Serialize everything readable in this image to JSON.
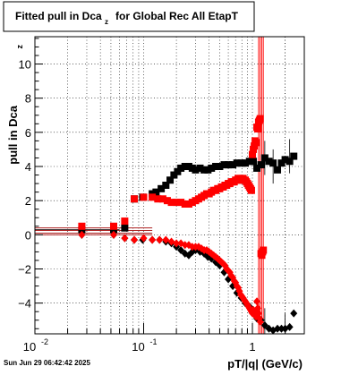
{
  "chart_data": {
    "type": "scatter",
    "title": "Fitted pull in Dca",
    "title_subscript": "z",
    "title_suffix": "for Global Rec All EtapT",
    "xlabel": "pT/|q| (GeV/c)",
    "ylabel": "pull in Dca",
    "ylabel_subscript": "z",
    "xscale": "log",
    "xlim": [
      0.01,
      3.0
    ],
    "ylim": [
      -5.8,
      11.6
    ],
    "grid": true,
    "x_tick_labels": [
      {
        "value": 0.01,
        "base": "10",
        "exp": "-2"
      },
      {
        "value": 0.1,
        "base": "10",
        "exp": "-1"
      },
      {
        "value": 1,
        "base": "1",
        "exp": ""
      }
    ],
    "y_ticks": [
      -4,
      -2,
      0,
      2,
      4,
      6,
      8,
      10
    ],
    "y_tick_labels": [
      "−4",
      "−2",
      "0",
      "2",
      "4",
      "6",
      "8",
      "10"
    ],
    "timestamp": "Sun Jun 29 06:42:42 2025",
    "series": [
      {
        "color": "#000000",
        "marker": "square",
        "x": [
          0.027,
          0.053,
          0.067,
          0.082,
          0.098,
          0.12,
          0.13,
          0.145,
          0.16,
          0.175,
          0.19,
          0.205,
          0.22,
          0.24,
          0.26,
          0.28,
          0.3,
          0.33,
          0.36,
          0.39,
          0.42,
          0.46,
          0.5,
          0.55,
          0.6,
          0.66,
          0.72,
          0.79,
          0.86,
          0.94,
          1.02,
          1.1,
          1.2,
          1.3,
          1.42,
          1.55,
          1.7,
          1.85,
          2.0,
          2.2,
          2.4
        ],
        "y": [
          0.3,
          0.3,
          0.4,
          2.1,
          2.2,
          2.4,
          2.5,
          2.7,
          2.9,
          3.2,
          3.5,
          3.7,
          3.9,
          4.0,
          4.0,
          3.9,
          3.8,
          3.9,
          3.8,
          3.8,
          3.9,
          4.0,
          4.0,
          4.1,
          4.1,
          4.1,
          4.2,
          4.2,
          4.2,
          4.3,
          4.3,
          3.9,
          4.1,
          4.5,
          4.3,
          4.2,
          3.8,
          4.2,
          4.4,
          4.3,
          4.6
        ]
      },
      {
        "color": "#000000",
        "marker": "diamond",
        "x": [
          0.027,
          0.053,
          0.067,
          0.082,
          0.098,
          0.12,
          0.14,
          0.16,
          0.18,
          0.2,
          0.22,
          0.24,
          0.26,
          0.28,
          0.3,
          0.33,
          0.36,
          0.39,
          0.42,
          0.46,
          0.5,
          0.55,
          0.6,
          0.66,
          0.72,
          0.79,
          0.86,
          0.94,
          1.02,
          1.1,
          1.2,
          1.3,
          1.42,
          1.55,
          1.7,
          1.85,
          2.0,
          2.2,
          2.4
        ],
        "y": [
          0.0,
          0.0,
          -0.2,
          -0.3,
          -0.3,
          -0.3,
          -0.3,
          -0.4,
          -0.5,
          -0.7,
          -0.9,
          -1.1,
          -1.2,
          -1.0,
          -0.9,
          -1.0,
          -1.1,
          -1.3,
          -1.4,
          -1.6,
          -1.8,
          -2.2,
          -2.6,
          -3.0,
          -3.4,
          -3.7,
          -4.0,
          -4.2,
          -4.6,
          -4.9,
          -5.0,
          -5.3,
          -5.5,
          -5.6,
          -5.5,
          -5.5,
          -5.5,
          -5.4,
          -4.6
        ]
      },
      {
        "color": "#ff0000",
        "marker": "square",
        "x": [
          0.027,
          0.053,
          0.067,
          0.082,
          0.1,
          0.12,
          0.135,
          0.15,
          0.165,
          0.18,
          0.2,
          0.22,
          0.24,
          0.26,
          0.28,
          0.3,
          0.32,
          0.34,
          0.36,
          0.38,
          0.4,
          0.42,
          0.44,
          0.46,
          0.48,
          0.5,
          0.52,
          0.54,
          0.56,
          0.58,
          0.6,
          0.62,
          0.64,
          0.66,
          0.68,
          0.7,
          0.72,
          0.74,
          0.76,
          0.78,
          0.8,
          0.82,
          0.84,
          0.86,
          0.88,
          0.9,
          0.92,
          0.94,
          0.96,
          0.98,
          1.0,
          1.02,
          1.04,
          1.06,
          1.08,
          1.1,
          1.12,
          1.14,
          1.16,
          1.18,
          1.2,
          1.22,
          1.24,
          1.26
        ],
        "y": [
          0.5,
          0.5,
          0.8,
          2.1,
          2.2,
          2.2,
          2.1,
          2.1,
          2.0,
          1.9,
          1.9,
          1.9,
          1.8,
          1.8,
          1.9,
          2.0,
          2.1,
          2.2,
          2.3,
          2.4,
          2.4,
          2.5,
          2.6,
          2.6,
          2.7,
          2.7,
          2.8,
          2.8,
          2.9,
          2.9,
          3.0,
          3.0,
          3.1,
          3.1,
          3.1,
          3.2,
          3.2,
          3.3,
          3.2,
          3.3,
          3.2,
          3.3,
          3.2,
          3.2,
          3.1,
          3.0,
          2.9,
          2.8,
          2.7,
          2.6,
          4.7,
          5.0,
          5.2,
          5.5,
          5.4,
          6.3,
          6.2,
          6.6,
          6.7,
          6.8,
          -1.1,
          -1.2,
          -1.0,
          -0.9
        ]
      },
      {
        "color": "#ff0000",
        "marker": "diamond",
        "x": [
          0.027,
          0.053,
          0.067,
          0.082,
          0.1,
          0.12,
          0.14,
          0.16,
          0.18,
          0.2,
          0.22,
          0.24,
          0.26,
          0.28,
          0.3,
          0.32,
          0.34,
          0.36,
          0.38,
          0.4,
          0.42,
          0.44,
          0.46,
          0.48,
          0.5,
          0.52,
          0.54,
          0.56,
          0.58,
          0.6,
          0.62,
          0.64,
          0.66,
          0.68,
          0.7,
          0.72,
          0.74,
          0.76,
          0.78,
          0.8,
          0.82,
          0.84,
          0.86,
          0.88,
          0.9,
          0.92,
          0.94,
          0.96,
          0.98,
          1.0,
          1.02,
          1.04,
          1.06,
          1.08,
          1.1,
          1.12,
          1.14,
          1.16,
          1.18
        ],
        "y": [
          0.0,
          0.0,
          -0.2,
          -0.3,
          -0.2,
          -0.3,
          -0.3,
          -0.3,
          -0.4,
          -0.5,
          -0.5,
          -0.6,
          -0.6,
          -0.7,
          -0.7,
          -0.7,
          -0.8,
          -0.9,
          -0.9,
          -1.0,
          -1.1,
          -1.2,
          -1.3,
          -1.4,
          -1.5,
          -1.6,
          -1.7,
          -1.8,
          -2.0,
          -2.1,
          -2.2,
          -2.4,
          -2.5,
          -2.7,
          -2.8,
          -3.0,
          -3.1,
          -3.3,
          -3.5,
          -3.6,
          -3.7,
          -3.8,
          -3.9,
          -4.0,
          -4.1,
          -4.2,
          -4.3,
          -4.4,
          -4.5,
          -4.6,
          -4.4,
          -4.5,
          -4.7,
          -4.8,
          -3.9,
          -4.3,
          -4.6,
          -4.9,
          -5.1
        ]
      }
    ]
  }
}
